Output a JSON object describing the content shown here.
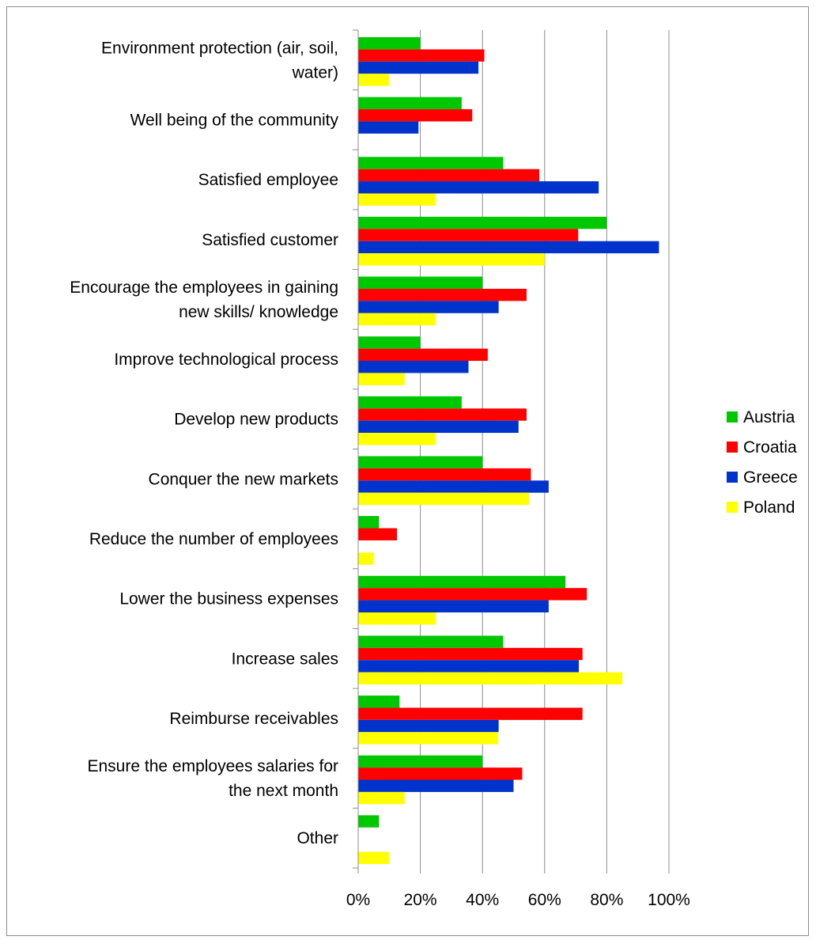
{
  "chart_data": {
    "type": "bar",
    "orientation": "horizontal",
    "categories": [
      "Environment protection (air, soil, water)",
      "Well being of the community",
      "Satisfied employee",
      "Satisfied customer",
      "Encourage the employees in gaining new skills/ knowledge",
      "Improve technological process",
      "Develop new products",
      "Conquer the new markets",
      "Reduce the number of employees",
      "Lower the business expenses",
      "Increase sales",
      "Reimburse receivables",
      "Ensure the employees salaries for the next month",
      "Other"
    ],
    "category_lines": [
      [
        "Environment protection (air, soil,",
        "water)"
      ],
      [
        "Well being of the community"
      ],
      [
        "Satisfied employee"
      ],
      [
        "Satisfied customer"
      ],
      [
        "Encourage the employees in gaining",
        "new skills/ knowledge"
      ],
      [
        "Improve technological process"
      ],
      [
        "Develop new products"
      ],
      [
        "Conquer the new markets"
      ],
      [
        "Reduce the number of employees"
      ],
      [
        "Lower the business expenses"
      ],
      [
        "Increase sales"
      ],
      [
        "Reimburse receivables"
      ],
      [
        "Ensure the employees salaries for",
        "the next month"
      ],
      [
        "Other"
      ]
    ],
    "series": [
      {
        "name": "Austria",
        "color": "#00c800",
        "values": [
          20,
          33.3,
          46.7,
          80,
          40,
          20,
          33.3,
          40,
          6.7,
          66.7,
          46.7,
          13.3,
          40,
          6.7
        ]
      },
      {
        "name": "Croatia",
        "color": "#ff0000",
        "values": [
          40.6,
          36.7,
          58.3,
          70.8,
          54.2,
          41.7,
          54.2,
          55.6,
          12.5,
          73.6,
          72.2,
          72.2,
          52.8,
          0
        ]
      },
      {
        "name": "Greece",
        "color": "#0033cc",
        "values": [
          38.7,
          19.4,
          77.4,
          96.8,
          45.2,
          35.5,
          51.6,
          61.3,
          0,
          61.3,
          71,
          45.2,
          50,
          0
        ]
      },
      {
        "name": "Poland",
        "color": "#ffff00",
        "values": [
          10,
          0,
          25,
          60,
          25,
          15,
          25,
          55,
          5,
          25,
          85,
          45,
          15,
          10
        ]
      }
    ],
    "xlim": [
      0,
      100
    ],
    "x_ticks": [
      "0%",
      "20%",
      "40%",
      "60%",
      "80%",
      "100%"
    ],
    "x_tick_values": [
      0,
      20,
      40,
      60,
      80,
      100
    ],
    "grid": true,
    "legend_position": "right"
  }
}
